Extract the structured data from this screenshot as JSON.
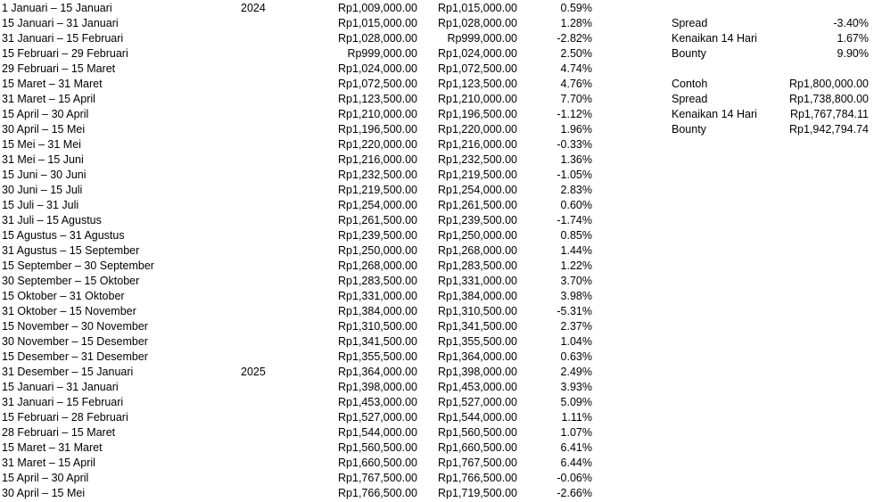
{
  "rows": [
    {
      "period": "1 Januari – 15 Januari",
      "year": "2024",
      "from": "Rp1,009,000.00",
      "to": "Rp1,015,000.00",
      "pct": "0.59%"
    },
    {
      "period": "15 Januari – 31 Januari",
      "year": "",
      "from": "Rp1,015,000.00",
      "to": "Rp1,028,000.00",
      "pct": "1.28%"
    },
    {
      "period": "31 Januari – 15 Februari",
      "year": "",
      "from": "Rp1,028,000.00",
      "to": "Rp999,000.00",
      "pct": "-2.82%"
    },
    {
      "period": "15 Februari – 29 Februari",
      "year": "",
      "from": "Rp999,000.00",
      "to": "Rp1,024,000.00",
      "pct": "2.50%"
    },
    {
      "period": "29 Februari – 15 Maret",
      "year": "",
      "from": "Rp1,024,000.00",
      "to": "Rp1,072,500.00",
      "pct": "4.74%"
    },
    {
      "period": "15 Maret – 31 Maret",
      "year": "",
      "from": "Rp1,072,500.00",
      "to": "Rp1,123,500.00",
      "pct": "4.76%"
    },
    {
      "period": "31 Maret – 15 April",
      "year": "",
      "from": "Rp1,123,500.00",
      "to": "Rp1,210,000.00",
      "pct": "7.70%"
    },
    {
      "period": "15 April – 30 April",
      "year": "",
      "from": "Rp1,210,000.00",
      "to": "Rp1,196,500.00",
      "pct": "-1.12%"
    },
    {
      "period": "30 April – 15 Mei",
      "year": "",
      "from": "Rp1,196,500.00",
      "to": "Rp1,220,000.00",
      "pct": "1.96%"
    },
    {
      "period": "15 Mei – 31 Mei",
      "year": "",
      "from": "Rp1,220,000.00",
      "to": "Rp1,216,000.00",
      "pct": "-0.33%"
    },
    {
      "period": "31 Mei – 15 Juni",
      "year": "",
      "from": "Rp1,216,000.00",
      "to": "Rp1,232,500.00",
      "pct": "1.36%"
    },
    {
      "period": "15 Juni – 30 Juni",
      "year": "",
      "from": "Rp1,232,500.00",
      "to": "Rp1,219,500.00",
      "pct": "-1.05%"
    },
    {
      "period": "30 Juni – 15 Juli",
      "year": "",
      "from": "Rp1,219,500.00",
      "to": "Rp1,254,000.00",
      "pct": "2.83%"
    },
    {
      "period": "15 Juli – 31 Juli",
      "year": "",
      "from": "Rp1,254,000.00",
      "to": "Rp1,261,500.00",
      "pct": "0.60%"
    },
    {
      "period": "31 Juli – 15 Agustus",
      "year": "",
      "from": "Rp1,261,500.00",
      "to": "Rp1,239,500.00",
      "pct": "-1.74%"
    },
    {
      "period": "15 Agustus – 31 Agustus",
      "year": "",
      "from": "Rp1,239,500.00",
      "to": "Rp1,250,000.00",
      "pct": "0.85%"
    },
    {
      "period": "31 Agustus – 15 September",
      "year": "",
      "from": "Rp1,250,000.00",
      "to": "Rp1,268,000.00",
      "pct": "1.44%"
    },
    {
      "period": "15 September – 30 September",
      "year": "",
      "from": "Rp1,268,000.00",
      "to": "Rp1,283,500.00",
      "pct": "1.22%"
    },
    {
      "period": "30 September – 15 Oktober",
      "year": "",
      "from": "Rp1,283,500.00",
      "to": "Rp1,331,000.00",
      "pct": "3.70%"
    },
    {
      "period": "15 Oktober – 31 Oktober",
      "year": "",
      "from": "Rp1,331,000.00",
      "to": "Rp1,384,000.00",
      "pct": "3.98%"
    },
    {
      "period": "31 Oktober – 15 November",
      "year": "",
      "from": "Rp1,384,000.00",
      "to": "Rp1,310,500.00",
      "pct": "-5.31%"
    },
    {
      "period": "15 November – 30 November",
      "year": "",
      "from": "Rp1,310,500.00",
      "to": "Rp1,341,500.00",
      "pct": "2.37%"
    },
    {
      "period": "30 November – 15 Desember",
      "year": "",
      "from": "Rp1,341,500.00",
      "to": "Rp1,355,500.00",
      "pct": "1.04%"
    },
    {
      "period": "15 Desember – 31 Desember",
      "year": "",
      "from": "Rp1,355,500.00",
      "to": "Rp1,364,000.00",
      "pct": "0.63%"
    },
    {
      "period": "31 Desember – 15 Januari",
      "year": "2025",
      "from": "Rp1,364,000.00",
      "to": "Rp1,398,000.00",
      "pct": "2.49%"
    },
    {
      "period": "15 Januari – 31 Januari",
      "year": "",
      "from": "Rp1,398,000.00",
      "to": "Rp1,453,000.00",
      "pct": "3.93%"
    },
    {
      "period": "31 Januari – 15 Februari",
      "year": "",
      "from": "Rp1,453,000.00",
      "to": "Rp1,527,000.00",
      "pct": "5.09%"
    },
    {
      "period": "15 Februari – 28 Februari",
      "year": "",
      "from": "Rp1,527,000.00",
      "to": "Rp1,544,000.00",
      "pct": "1.11%"
    },
    {
      "period": "28 Februari – 15 Maret",
      "year": "",
      "from": "Rp1,544,000.00",
      "to": "Rp1,560,500.00",
      "pct": "1.07%"
    },
    {
      "period": "15 Maret – 31 Maret",
      "year": "",
      "from": "Rp1,560,500.00",
      "to": "Rp1,660,500.00",
      "pct": "6.41%"
    },
    {
      "period": "31 Maret – 15 April",
      "year": "",
      "from": "Rp1,660,500.00",
      "to": "Rp1,767,500.00",
      "pct": "6.44%"
    },
    {
      "period": "15 April – 30 April",
      "year": "",
      "from": "Rp1,767,500.00",
      "to": "Rp1,766,500.00",
      "pct": "-0.06%"
    },
    {
      "period": "30 April – 15 Mei",
      "year": "",
      "from": "Rp1,766,500.00",
      "to": "Rp1,719,500.00",
      "pct": "-2.66%"
    }
  ],
  "summary": {
    "spread_label": "Spread",
    "spread_value": "-3.40%",
    "increase_label": "Kenaikan 14 Hari",
    "increase_value": "1.67%",
    "bounty_label": "Bounty",
    "bounty_value": "9.90%"
  },
  "example": {
    "contoh_label": "Contoh",
    "contoh_value": "Rp1,800,000.00",
    "spread_label": "Spread",
    "spread_value": "Rp1,738,800.00",
    "increase_label": "Kenaikan 14 Hari",
    "increase_value": "Rp1,767,784.11",
    "bounty_label": "Bounty",
    "bounty_value": "Rp1,942,794.74"
  }
}
